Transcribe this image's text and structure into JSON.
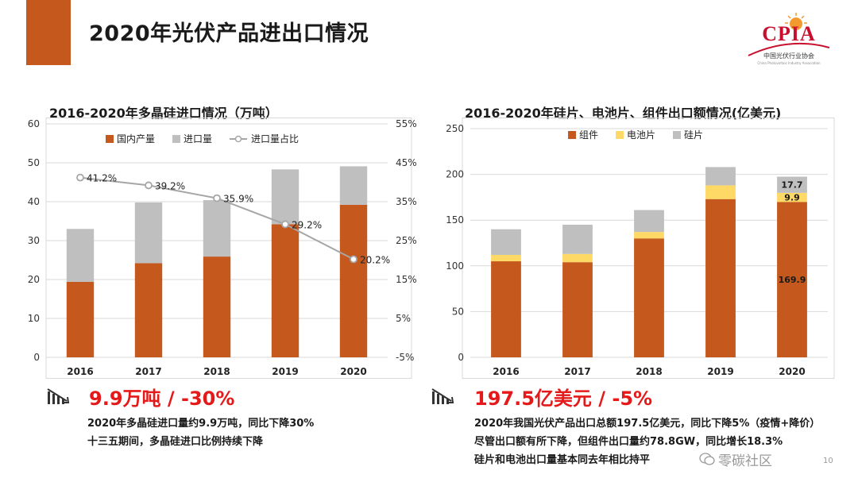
{
  "header": {
    "title": "2020年光伏产品进出口情况",
    "logo_text": "CPIA",
    "logo_sub": "中国光伏行业协会",
    "logo_sub_en": "China Photovoltaic Industry Association"
  },
  "colors": {
    "orange": "#c4581d",
    "gray": "#bfbfbf",
    "yellow": "#ffd966",
    "red": "#e41a1a",
    "line": "#a6a6a6"
  },
  "left": {
    "title": "2016-2020年多晶硅进口情况（万吨）",
    "stat": "9.9万吨 / -30%",
    "notes": [
      "2020年多晶硅进口量约9.9万吨，同比下降30%",
      "十三五期间，多晶硅进口比例持续下降"
    ]
  },
  "right": {
    "title": "2016-2020年硅片、电池片、组件出口额情况(亿美元)",
    "stat": "197.5亿美元  / -5%",
    "notes": [
      "2020年我国光伏产品出口总额197.5亿美元，同比下降5%（疫情+降价）",
      "尽管出口额有所下降，但组件出口量约78.8GW，同比增长18.3%",
      "硅片和电池出口量基本同去年相比持平"
    ]
  },
  "watermark": "零碳社区",
  "page_number": "10",
  "chart_data": [
    {
      "type": "bar",
      "stacked": true,
      "title": "2016-2020年多晶硅进口情况（万吨）",
      "categories": [
        "2016",
        "2017",
        "2018",
        "2019",
        "2020"
      ],
      "series": [
        {
          "name": "国内产量",
          "values": [
            19.4,
            24.2,
            25.9,
            34.2,
            39.2
          ],
          "color": "#c4581d"
        },
        {
          "name": "进口量",
          "values": [
            13.6,
            15.6,
            14.5,
            14.1,
            9.9
          ],
          "color": "#bfbfbf"
        }
      ],
      "line_series": {
        "name": "进口量占比",
        "values": [
          41.2,
          39.2,
          35.9,
          29.2,
          20.2
        ],
        "labels": [
          "41.2%",
          "39.2%",
          "35.9%",
          "29.2%",
          "20.2%"
        ],
        "color": "#a6a6a6"
      },
      "ylim": [
        0,
        60
      ],
      "yticks": [
        "0",
        "10",
        "20",
        "30",
        "40",
        "50",
        "60"
      ],
      "y2lim": [
        -5,
        55
      ],
      "y2ticks": [
        "-5%",
        "5%",
        "15%",
        "25%",
        "35%",
        "45%",
        "55%"
      ],
      "legend": "top",
      "grid": true
    },
    {
      "type": "bar",
      "stacked": true,
      "title": "2016-2020年硅片、电池片、组件出口额情况(亿美元)",
      "categories": [
        "2016",
        "2017",
        "2018",
        "2019",
        "2020"
      ],
      "series": [
        {
          "name": "组件",
          "values": [
            105,
            104,
            130,
            173,
            169.9
          ],
          "color": "#c4581d"
        },
        {
          "name": "电池片",
          "values": [
            7,
            9,
            7,
            15,
            9.9
          ],
          "color": "#ffd966"
        },
        {
          "name": "硅片",
          "values": [
            28,
            32,
            24,
            20,
            17.7
          ],
          "color": "#bfbfbf"
        }
      ],
      "data_labels": {
        "2020": [
          "169.9",
          "9.9",
          "17.7"
        ]
      },
      "ylim": [
        0,
        250
      ],
      "yticks": [
        "0",
        "50",
        "100",
        "150",
        "200",
        "250"
      ],
      "legend": "top",
      "grid": true
    }
  ]
}
